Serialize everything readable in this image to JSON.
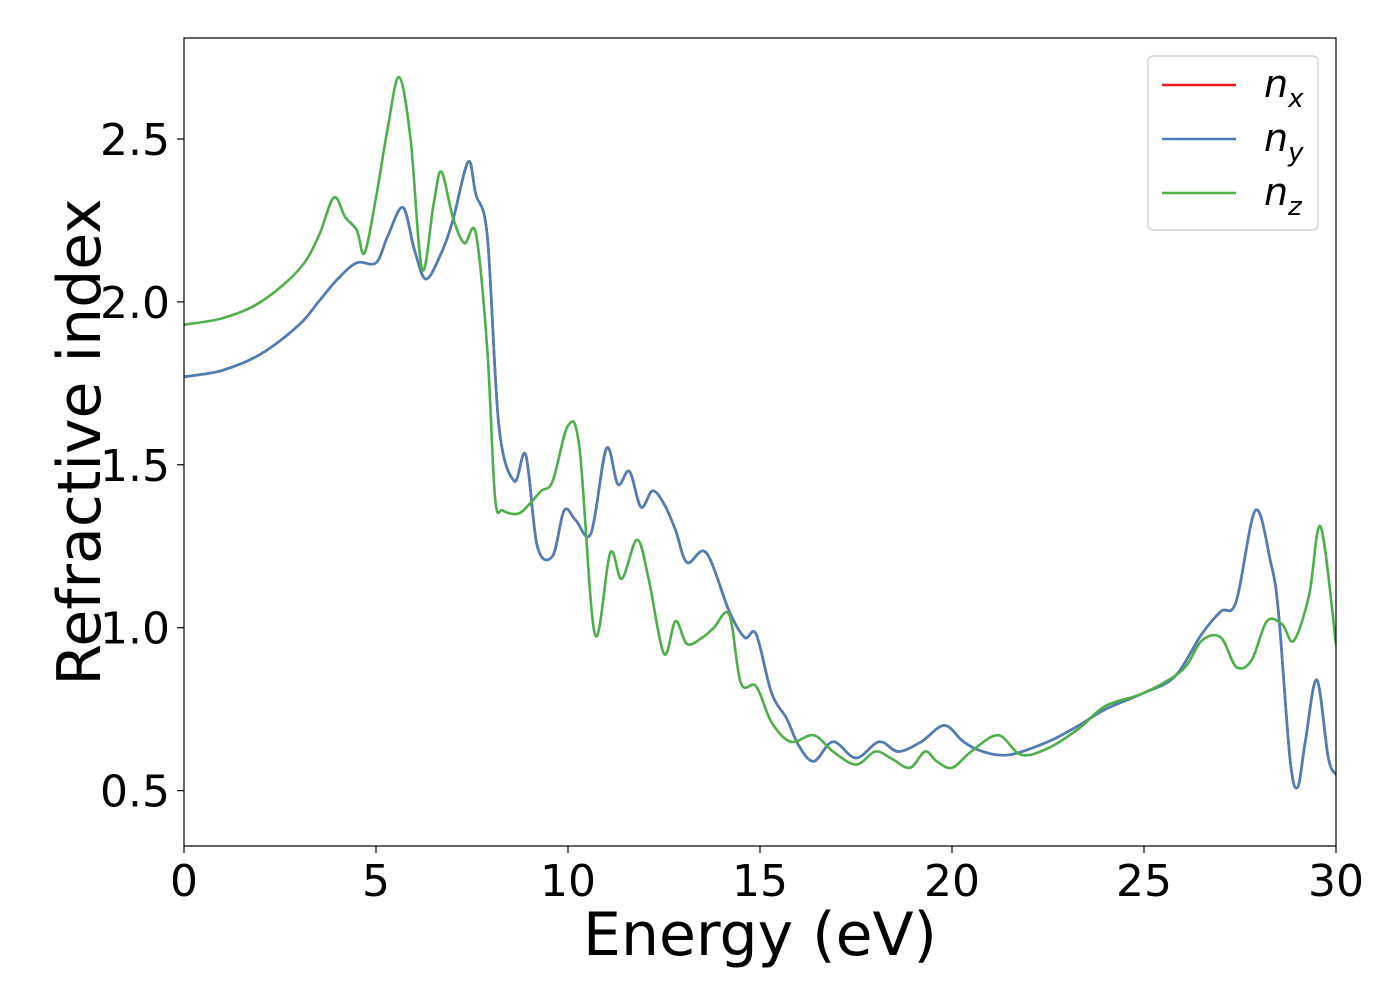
{
  "chart_data": {
    "type": "line",
    "title": "",
    "xlabel": "Energy (eV)",
    "ylabel": "Refractive index",
    "xlim": [
      0,
      30
    ],
    "ylim": [
      0.33,
      2.81
    ],
    "xticks": [
      0,
      5,
      10,
      15,
      20,
      25,
      30
    ],
    "xtick_labels": [
      "0",
      "5",
      "10",
      "15",
      "20",
      "25",
      "30"
    ],
    "yticks": [
      0.5,
      1.0,
      1.5,
      2.0,
      2.5
    ],
    "ytick_labels": [
      "0.5",
      "1.0",
      "1.5",
      "2.0",
      "2.5"
    ],
    "grid": false,
    "legend_position": "top-right",
    "series": [
      {
        "name": "n_x",
        "legend_main": "n",
        "legend_sub": "x",
        "color": "#e41a1c",
        "x": [
          0,
          1,
          2,
          3,
          3.5,
          4,
          4.5,
          5,
          5.3,
          5.7,
          6.0,
          6.3,
          6.7,
          7.0,
          7.4,
          7.6,
          7.9,
          8.2,
          8.6,
          8.9,
          9.2,
          9.6,
          9.9,
          10.2,
          10.6,
          11.0,
          11.3,
          11.6,
          11.9,
          12.2,
          12.5,
          12.8,
          13.1,
          13.6,
          14.2,
          14.6,
          14.9,
          15.3,
          15.7,
          16.0,
          16.4,
          16.9,
          17.5,
          18.1,
          18.6,
          19.2,
          19.8,
          20.3,
          20.8,
          21.5,
          22.5,
          23.3,
          24.0,
          25.0,
          25.8,
          26.5,
          27.0,
          27.4,
          27.9,
          28.3,
          28.5,
          28.8,
          29.0,
          29.2,
          29.5,
          29.8,
          30.0
        ],
        "y": [
          1.77,
          1.79,
          1.84,
          1.93,
          2.0,
          2.07,
          2.12,
          2.12,
          2.2,
          2.29,
          2.16,
          2.07,
          2.15,
          2.25,
          2.43,
          2.33,
          2.2,
          1.62,
          1.45,
          1.53,
          1.25,
          1.22,
          1.36,
          1.33,
          1.29,
          1.55,
          1.44,
          1.48,
          1.37,
          1.42,
          1.38,
          1.3,
          1.2,
          1.23,
          1.05,
          0.97,
          0.98,
          0.8,
          0.72,
          0.64,
          0.59,
          0.65,
          0.6,
          0.65,
          0.62,
          0.65,
          0.7,
          0.65,
          0.62,
          0.61,
          0.65,
          0.7,
          0.75,
          0.8,
          0.85,
          0.98,
          1.05,
          1.08,
          1.36,
          1.2,
          1.05,
          0.6,
          0.51,
          0.65,
          0.84,
          0.6,
          0.55
        ]
      },
      {
        "name": "n_y",
        "legend_main": "n",
        "legend_sub": "y",
        "color": "#4a7fb8",
        "x": [
          0,
          1,
          2,
          3,
          3.5,
          4,
          4.5,
          5,
          5.3,
          5.7,
          6.0,
          6.3,
          6.7,
          7.0,
          7.4,
          7.6,
          7.9,
          8.2,
          8.6,
          8.9,
          9.2,
          9.6,
          9.9,
          10.2,
          10.6,
          11.0,
          11.3,
          11.6,
          11.9,
          12.2,
          12.5,
          12.8,
          13.1,
          13.6,
          14.2,
          14.6,
          14.9,
          15.3,
          15.7,
          16.0,
          16.4,
          16.9,
          17.5,
          18.1,
          18.6,
          19.2,
          19.8,
          20.3,
          20.8,
          21.5,
          22.5,
          23.3,
          24.0,
          25.0,
          25.8,
          26.5,
          27.0,
          27.4,
          27.9,
          28.3,
          28.5,
          28.8,
          29.0,
          29.2,
          29.5,
          29.8,
          30.0
        ],
        "y": [
          1.77,
          1.79,
          1.84,
          1.93,
          2.0,
          2.07,
          2.12,
          2.12,
          2.2,
          2.29,
          2.16,
          2.07,
          2.15,
          2.25,
          2.43,
          2.33,
          2.2,
          1.62,
          1.45,
          1.53,
          1.25,
          1.22,
          1.36,
          1.33,
          1.29,
          1.55,
          1.44,
          1.48,
          1.37,
          1.42,
          1.38,
          1.3,
          1.2,
          1.23,
          1.05,
          0.97,
          0.98,
          0.8,
          0.72,
          0.64,
          0.59,
          0.65,
          0.6,
          0.65,
          0.62,
          0.65,
          0.7,
          0.65,
          0.62,
          0.61,
          0.65,
          0.7,
          0.75,
          0.8,
          0.85,
          0.98,
          1.05,
          1.08,
          1.36,
          1.2,
          1.05,
          0.6,
          0.51,
          0.65,
          0.84,
          0.6,
          0.55
        ]
      },
      {
        "name": "n_z",
        "legend_main": "n",
        "legend_sub": "z",
        "color": "#4daf4a",
        "x": [
          0,
          1,
          2,
          3,
          3.5,
          3.9,
          4.2,
          4.5,
          4.7,
          5.0,
          5.3,
          5.6,
          5.9,
          6.2,
          6.5,
          6.7,
          7.0,
          7.3,
          7.6,
          7.9,
          8.1,
          8.3,
          8.7,
          9.0,
          9.3,
          9.6,
          10.0,
          10.3,
          10.7,
          11.1,
          11.4,
          11.8,
          12.1,
          12.5,
          12.8,
          13.1,
          13.5,
          13.8,
          14.2,
          14.5,
          14.9,
          15.3,
          15.8,
          16.4,
          16.9,
          17.5,
          18.0,
          18.4,
          18.9,
          19.3,
          19.6,
          20.0,
          20.5,
          21.2,
          21.8,
          22.5,
          23.3,
          24.0,
          25.0,
          26.0,
          26.5,
          27.0,
          27.4,
          27.8,
          28.2,
          28.6,
          28.9,
          29.3,
          29.6,
          30.0
        ],
        "y": [
          1.93,
          1.95,
          2.0,
          2.1,
          2.2,
          2.32,
          2.26,
          2.22,
          2.15,
          2.32,
          2.53,
          2.69,
          2.5,
          2.1,
          2.3,
          2.4,
          2.26,
          2.18,
          2.21,
          1.85,
          1.4,
          1.36,
          1.35,
          1.38,
          1.42,
          1.45,
          1.62,
          1.55,
          0.98,
          1.23,
          1.15,
          1.27,
          1.15,
          0.92,
          1.02,
          0.95,
          0.97,
          1.0,
          1.04,
          0.83,
          0.82,
          0.71,
          0.65,
          0.67,
          0.62,
          0.58,
          0.62,
          0.6,
          0.57,
          0.62,
          0.59,
          0.57,
          0.62,
          0.67,
          0.61,
          0.63,
          0.69,
          0.76,
          0.8,
          0.87,
          0.96,
          0.97,
          0.88,
          0.9,
          1.02,
          1.01,
          0.96,
          1.1,
          1.31,
          0.95
        ]
      }
    ]
  }
}
